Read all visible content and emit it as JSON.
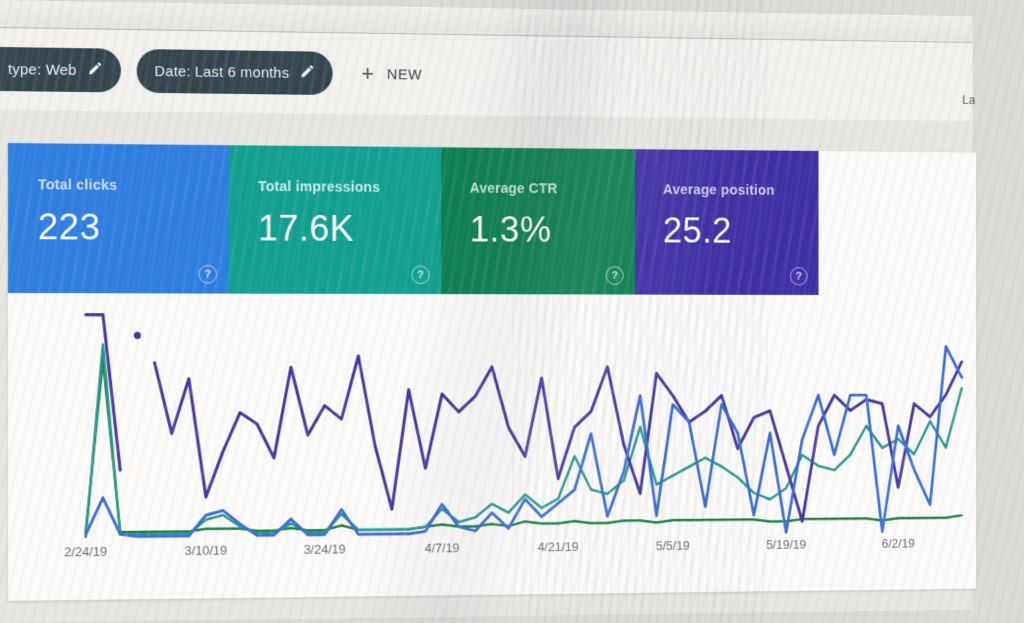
{
  "topbar": {
    "chips": [
      {
        "label": "type: Web"
      },
      {
        "label": "Date: Last 6 months"
      }
    ],
    "new_button": {
      "plus_glyph": "+",
      "label": "NEW"
    },
    "partial_right_text": "La"
  },
  "metrics": {
    "help_glyph": "?",
    "cards": [
      {
        "label": "Total clicks",
        "value": "223",
        "color": "#2e7de0",
        "label_color": "#cfe0fb"
      },
      {
        "label": "Total impressions",
        "value": "17.6K",
        "color": "#12a091",
        "label_color": "#c9efe9"
      },
      {
        "label": "Average CTR",
        "value": "1.3%",
        "color": "#0e7f52",
        "label_color": "#c3e6d4"
      },
      {
        "label": "Average position",
        "value": "25.2",
        "color": "#3f2fa5",
        "label_color": "#d5cdf2"
      }
    ]
  },
  "chart_data": {
    "type": "line",
    "title": "",
    "xlabel": "",
    "ylabel": "",
    "y_axis_visible": false,
    "y_note": "No y-axis shown in UI; values are estimated heights in % of plot height (0 = baseline, 100 = top)",
    "grid": false,
    "legend": "none (series colors match metric cards above)",
    "x_tick_labels": [
      "2/24/19",
      "3/10/19",
      "3/24/19",
      "4/7/19",
      "4/21/19",
      "5/5/19",
      "5/19/19",
      "6/2/19"
    ],
    "x_tick_indices": [
      0,
      7,
      14,
      21,
      28,
      35,
      42,
      49
    ],
    "points_per_series": 54,
    "series": [
      {
        "key": "ctr",
        "name": "Average CTR",
        "color": "#177d3e",
        "width": 2.4,
        "values": [
          3,
          78,
          3,
          3,
          3,
          3,
          3,
          4,
          4,
          4,
          3,
          3,
          4,
          3,
          3,
          5,
          3,
          3,
          3,
          3,
          4,
          5,
          4,
          4,
          5,
          4,
          6,
          5,
          5,
          6,
          5,
          5,
          6,
          6,
          5,
          6,
          6,
          6,
          6,
          6,
          6,
          5,
          5,
          6,
          6,
          6,
          6,
          6,
          5,
          6,
          6,
          6,
          6,
          7
        ],
        "segments": [
          [
            0,
            53
          ]
        ]
      },
      {
        "key": "impressions",
        "name": "Total impressions",
        "color": "#27998c",
        "width": 2.6,
        "values": [
          1,
          85,
          2,
          2,
          2,
          2,
          2,
          8,
          10,
          5,
          2,
          2,
          6,
          2,
          2,
          10,
          3,
          3,
          3,
          3,
          4,
          12,
          6,
          8,
          14,
          10,
          18,
          12,
          16,
          35,
          20,
          18,
          24,
          48,
          22,
          26,
          30,
          34,
          30,
          25,
          18,
          15,
          20,
          35,
          30,
          28,
          35,
          48,
          38,
          42,
          35,
          50,
          38,
          65
        ],
        "segments": [
          [
            0,
            53
          ]
        ]
      },
      {
        "key": "position",
        "name": "Average position",
        "color": "#46389f",
        "width": 3.1,
        "values": [
          98,
          98,
          30,
          89,
          77,
          46,
          70,
          18,
          38,
          55,
          50,
          35,
          75,
          45,
          58,
          52,
          80,
          40,
          12,
          65,
          30,
          63,
          55,
          62,
          75,
          48,
          35,
          70,
          25,
          48,
          55,
          75,
          40,
          18,
          72,
          62,
          50,
          55,
          62,
          38,
          52,
          55,
          30,
          5,
          48,
          62,
          55,
          60,
          58,
          20,
          58,
          52,
          62,
          77
        ],
        "segments": [
          [
            0,
            2
          ],
          [
            4,
            53
          ]
        ],
        "isolated_points": [
          3
        ]
      },
      {
        "key": "clicks",
        "name": "Total clicks",
        "color": "#3a6cd6",
        "width": 2.9,
        "values": [
          2,
          18,
          2,
          1,
          1,
          1,
          1,
          10,
          12,
          6,
          1,
          1,
          8,
          1,
          1,
          12,
          1,
          1,
          1,
          1,
          2,
          14,
          4,
          2,
          10,
          3,
          16,
          8,
          14,
          20,
          45,
          8,
          28,
          62,
          8,
          58,
          50,
          12,
          58,
          45,
          8,
          45,
          0,
          42,
          62,
          35,
          62,
          62,
          0,
          48,
          28,
          12,
          84,
          70
        ],
        "segments": [
          [
            0,
            53
          ]
        ]
      }
    ]
  }
}
